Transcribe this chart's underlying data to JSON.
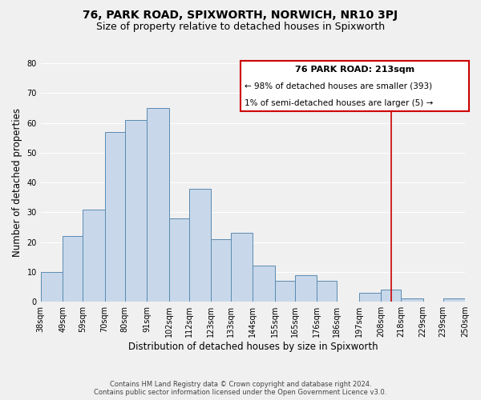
{
  "title": "76, PARK ROAD, SPIXWORTH, NORWICH, NR10 3PJ",
  "subtitle": "Size of property relative to detached houses in Spixworth",
  "xlabel": "Distribution of detached houses by size in Spixworth",
  "ylabel": "Number of detached properties",
  "bar_color": "#c8d8ea",
  "bar_edge_color": "#5a8ab0",
  "bins": [
    "38sqm",
    "49sqm",
    "59sqm",
    "70sqm",
    "80sqm",
    "91sqm",
    "102sqm",
    "112sqm",
    "123sqm",
    "133sqm",
    "144sqm",
    "155sqm",
    "165sqm",
    "176sqm",
    "186sqm",
    "197sqm",
    "208sqm",
    "218sqm",
    "229sqm",
    "239sqm",
    "250sqm"
  ],
  "values": [
    10,
    22,
    31,
    57,
    61,
    65,
    28,
    38,
    21,
    23,
    12,
    7,
    9,
    7,
    0,
    3,
    4,
    1,
    0,
    1
  ],
  "ylim": [
    0,
    80
  ],
  "yticks": [
    0,
    10,
    20,
    30,
    40,
    50,
    60,
    70,
    80
  ],
  "vline_x": 213,
  "vline_color": "#cc0000",
  "bin_edges_numeric": [
    38,
    49,
    59,
    70,
    80,
    91,
    102,
    112,
    123,
    133,
    144,
    155,
    165,
    176,
    186,
    197,
    208,
    218,
    229,
    239,
    250
  ],
  "annotation_title": "76 PARK ROAD: 213sqm",
  "annotation_line1": "← 98% of detached houses are smaller (393)",
  "annotation_line2": "1% of semi-detached houses are larger (5) →",
  "annotation_box_color": "#ffffff",
  "annotation_box_edge": "#cc0000",
  "footer1": "Contains HM Land Registry data © Crown copyright and database right 2024.",
  "footer2": "Contains public sector information licensed under the Open Government Licence v3.0.",
  "background_color": "#f0f0f0",
  "grid_color": "#ffffff",
  "title_fontsize": 10,
  "subtitle_fontsize": 9,
  "axis_label_fontsize": 8.5,
  "tick_fontsize": 7,
  "annotation_title_fontsize": 8,
  "annotation_text_fontsize": 7.5,
  "footer_fontsize": 6
}
